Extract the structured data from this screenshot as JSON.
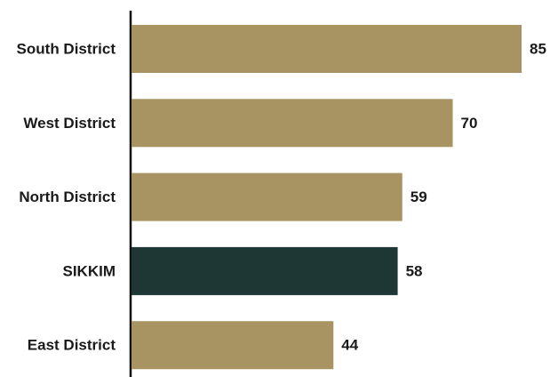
{
  "chart_data": {
    "type": "bar",
    "orientation": "horizontal",
    "categories": [
      "South District",
      "West District",
      "North District",
      "SIKKIM",
      "East District"
    ],
    "values": [
      85,
      70,
      59,
      58,
      44
    ],
    "colors": [
      "#a89462",
      "#a89462",
      "#a89462",
      "#1e3634",
      "#a89462"
    ]
  }
}
